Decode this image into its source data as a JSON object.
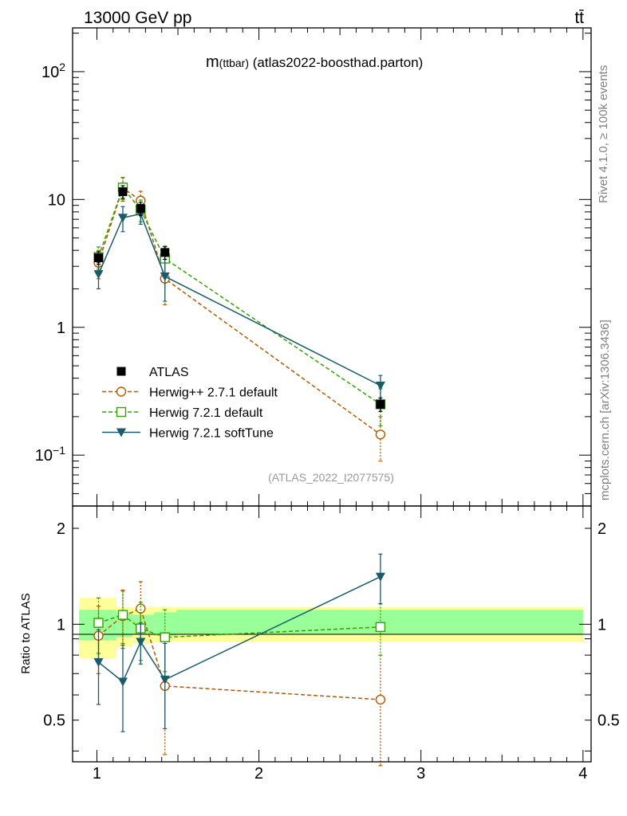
{
  "header": {
    "left": "13000 GeV pp",
    "right": "tt̄"
  },
  "side_texts": {
    "rivet": "Rivet 4.1.0, ≥ 100k events",
    "mcplots": "mcplots.cern.ch [arXiv:1306.3436]"
  },
  "chart_data": [
    {
      "panel": "main",
      "type": "line",
      "title": "m(ttbar) (atlas2022-boosthad.parton)",
      "title_main": "m",
      "title_sub": "(ttbar)",
      "title_rest": " (atlas2022-boosthad.parton)",
      "watermark": "(ATLAS_2022_I2077575)",
      "xlim": [
        0.85,
        4.05
      ],
      "ylim": [
        0.04,
        220
      ],
      "yscale": "log",
      "yticks": [
        {
          "value": 100,
          "base": "10",
          "exp": "2"
        },
        {
          "value": 10,
          "base": "10",
          "exp": ""
        },
        {
          "value": 1,
          "base": "1",
          "exp": ""
        },
        {
          "value": 0.1,
          "base": "10",
          "exp": "−1"
        }
      ],
      "legend": [
        {
          "label": "ATLAS",
          "color": "#000000",
          "marker": "square-filled"
        },
        {
          "label": "Herwig++ 2.7.1 default",
          "color": "#b35900",
          "marker": "circle-open"
        },
        {
          "label": "Herwig 7.2.1 default",
          "color": "#33a300",
          "marker": "square-open"
        },
        {
          "label": "Herwig 7.2.1 softTune",
          "color": "#1a5b6b",
          "marker": "triangle-down"
        }
      ],
      "series": [
        {
          "name": "ATLAS",
          "color": "#000000",
          "style": "points",
          "x": [
            1.01,
            1.16,
            1.27,
            1.42,
            2.75
          ],
          "y": [
            3.5,
            11.5,
            8.5,
            3.85,
            0.25
          ],
          "err": [
            0.4,
            1.3,
            1.0,
            0.45,
            0.03
          ]
        },
        {
          "name": "Herwig++ 2.7.1 default",
          "color": "#b35900",
          "style": "dashed",
          "x": [
            1.01,
            1.16,
            1.27,
            1.42,
            2.75
          ],
          "y": [
            3.2,
            12.3,
            9.8,
            2.4,
            0.145
          ],
          "err": [
            0.8,
            2.6,
            1.8,
            0.9,
            0.055
          ]
        },
        {
          "name": "Herwig 7.2.1 default",
          "color": "#33a300",
          "style": "dashed",
          "x": [
            1.01,
            1.16,
            1.27,
            1.42,
            2.75
          ],
          "y": [
            3.55,
            12.4,
            8.3,
            3.45,
            0.25
          ],
          "err": [
            0.7,
            2.4,
            1.6,
            0.8,
            0.08
          ]
        },
        {
          "name": "Herwig 7.2.1 softTune",
          "color": "#1a5b6b",
          "style": "solid",
          "x": [
            1.01,
            1.16,
            1.27,
            1.42,
            2.75
          ],
          "y": [
            2.6,
            7.2,
            7.7,
            2.5,
            0.35
          ],
          "err": [
            0.6,
            1.6,
            1.3,
            0.9,
            0.07
          ]
        }
      ]
    },
    {
      "panel": "ratio",
      "type": "line",
      "ylabel": "Ratio to ATLAS",
      "xlim": [
        0.85,
        4.05
      ],
      "ylim": [
        0.37,
        2.35
      ],
      "yscale": "log",
      "yticks": [
        {
          "value": 2,
          "label": "2"
        },
        {
          "value": 1,
          "label": "1"
        },
        {
          "value": 0.5,
          "label": "0.5"
        }
      ],
      "xticks": [
        {
          "value": 1,
          "label": "1"
        },
        {
          "value": 2,
          "label": "2"
        },
        {
          "value": 3,
          "label": "3"
        },
        {
          "value": 4,
          "label": "4"
        }
      ],
      "uncertainty_bands": [
        {
          "x_from": 0.89,
          "x_to": 1.12,
          "inner": [
            0.89,
            1.11
          ],
          "outer": [
            0.78,
            1.21
          ]
        },
        {
          "x_from": 1.12,
          "x_to": 1.22,
          "inner": [
            0.91,
            1.09
          ],
          "outer": [
            0.85,
            1.13
          ]
        },
        {
          "x_from": 1.22,
          "x_to": 1.35,
          "inner": [
            0.93,
            1.07
          ],
          "outer": [
            0.87,
            1.13
          ]
        },
        {
          "x_from": 1.35,
          "x_to": 1.49,
          "inner": [
            0.92,
            1.09
          ],
          "outer": [
            0.88,
            1.13
          ]
        },
        {
          "x_from": 1.49,
          "x_to": 4.0,
          "inner": [
            0.93,
            1.11
          ],
          "outer": [
            0.88,
            1.13
          ]
        }
      ],
      "series": [
        {
          "name": "Herwig++ 2.7.1 default",
          "color": "#b35900",
          "style": "dashed",
          "x": [
            1.01,
            1.16,
            1.27,
            1.42,
            2.75
          ],
          "y": [
            0.92,
            1.06,
            1.12,
            0.64,
            0.58
          ],
          "err": [
            0.22,
            0.22,
            0.24,
            0.25,
            0.22
          ]
        },
        {
          "name": "Herwig 7.2.1 default",
          "color": "#33a300",
          "style": "dashed",
          "x": [
            1.01,
            1.16,
            1.27,
            1.42,
            2.75
          ],
          "y": [
            1.01,
            1.07,
            0.97,
            0.91,
            0.98
          ],
          "err": [
            0.2,
            0.2,
            0.2,
            0.2,
            0.18
          ]
        },
        {
          "name": "Herwig 7.2.1 softTune",
          "color": "#1a5b6b",
          "style": "solid",
          "x": [
            1.01,
            1.16,
            1.27,
            1.42,
            2.75
          ],
          "y": [
            0.76,
            0.66,
            0.88,
            0.67,
            1.41
          ],
          "err": [
            0.2,
            0.2,
            0.13,
            0.2,
            0.25
          ]
        }
      ]
    }
  ]
}
